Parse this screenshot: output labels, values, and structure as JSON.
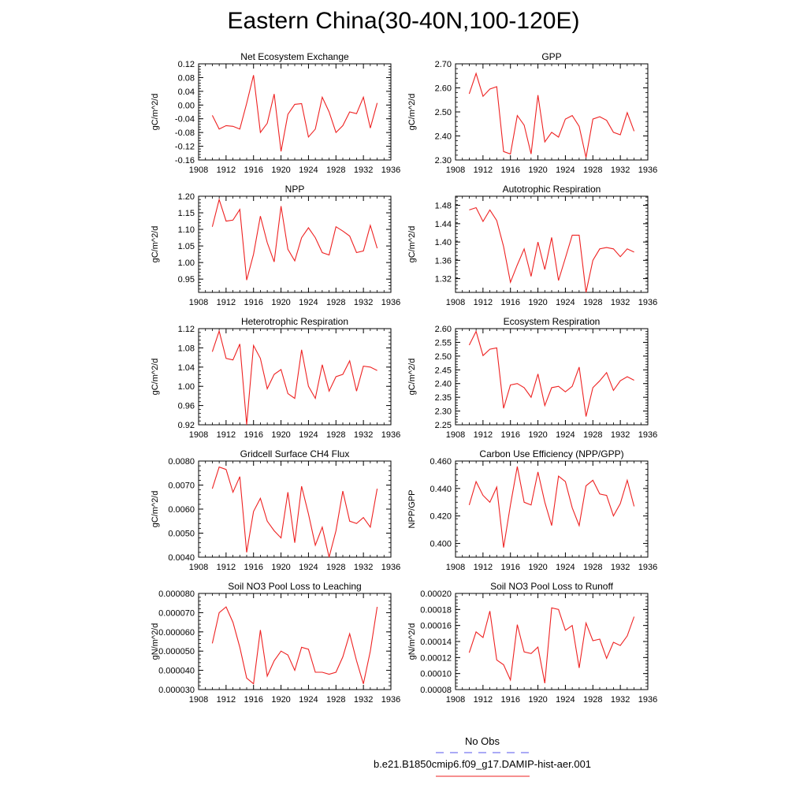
{
  "page_title": "Eastern China(30-40N,100-120E)",
  "legend": {
    "items": [
      {
        "label": "No Obs",
        "color": "#5555ee",
        "dash": "dashed"
      },
      {
        "label": "b.e21.B1850cmip6.f09_g17.DAMIP-hist-aer.001",
        "color": "#ee2222",
        "dash": "solid"
      }
    ]
  },
  "chart_data": [
    {
      "type": "line",
      "title": "Net Ecosystem Exchange",
      "ylabel": "gC/m^2/d",
      "xlim": [
        1908,
        1936
      ],
      "xticks": [
        "1908",
        "1912",
        "1916",
        "1920",
        "1924",
        "1928",
        "1932",
        "1936"
      ],
      "ylim": [
        -0.16,
        0.12
      ],
      "yticks": [
        "-0.16",
        "-0.12",
        "-0.08",
        "-0.04",
        "0.00",
        "0.04",
        "0.08",
        "0.12"
      ],
      "color": "#ee2222",
      "x": [
        1910,
        1911,
        1912,
        1913,
        1914,
        1915,
        1916,
        1917,
        1918,
        1919,
        1920,
        1921,
        1922,
        1923,
        1924,
        1925,
        1926,
        1927,
        1928,
        1929,
        1930,
        1931,
        1932,
        1933,
        1934
      ],
      "values": [
        -0.03,
        -0.07,
        -0.06,
        -0.062,
        -0.07,
        0.005,
        0.087,
        -0.08,
        -0.053,
        0.032,
        -0.135,
        -0.027,
        0.002,
        0.004,
        -0.093,
        -0.07,
        0.023,
        -0.02,
        -0.08,
        -0.06,
        -0.02,
        -0.025,
        0.023,
        -0.067,
        0.006
      ]
    },
    {
      "type": "line",
      "title": "GPP",
      "ylabel": "gC/m^2/d",
      "xlim": [
        1908,
        1936
      ],
      "xticks": [
        "1908",
        "1912",
        "1916",
        "1920",
        "1924",
        "1928",
        "1932",
        "1936"
      ],
      "ylim": [
        2.3,
        2.7
      ],
      "yticks": [
        "2.30",
        "2.40",
        "2.50",
        "2.60",
        "2.70"
      ],
      "color": "#ee2222",
      "x": [
        1910,
        1911,
        1912,
        1913,
        1914,
        1915,
        1916,
        1917,
        1918,
        1919,
        1920,
        1921,
        1922,
        1923,
        1924,
        1925,
        1926,
        1927,
        1928,
        1929,
        1930,
        1931,
        1932,
        1933,
        1934
      ],
      "values": [
        2.575,
        2.66,
        2.565,
        2.595,
        2.605,
        2.335,
        2.325,
        2.485,
        2.445,
        2.325,
        2.57,
        2.375,
        2.415,
        2.395,
        2.47,
        2.485,
        2.44,
        2.31,
        2.47,
        2.48,
        2.465,
        2.415,
        2.405,
        2.497,
        2.42
      ]
    },
    {
      "type": "line",
      "title": "NPP",
      "ylabel": "gC/m^2/d",
      "xlim": [
        1908,
        1936
      ],
      "xticks": [
        "1908",
        "1912",
        "1916",
        "1920",
        "1924",
        "1928",
        "1932",
        "1936"
      ],
      "ylim": [
        0.91,
        1.2
      ],
      "yticks": [
        "0.95",
        "1.00",
        "1.05",
        "1.10",
        "1.15",
        "1.20"
      ],
      "color": "#ee2222",
      "x": [
        1910,
        1911,
        1912,
        1913,
        1914,
        1915,
        1916,
        1917,
        1918,
        1919,
        1920,
        1921,
        1922,
        1923,
        1924,
        1925,
        1926,
        1927,
        1928,
        1929,
        1930,
        1931,
        1932,
        1933,
        1934
      ],
      "values": [
        1.108,
        1.19,
        1.125,
        1.128,
        1.16,
        0.947,
        1.025,
        1.14,
        1.06,
        1.002,
        1.17,
        1.04,
        1.005,
        1.075,
        1.105,
        1.075,
        1.03,
        1.023,
        1.108,
        1.095,
        1.08,
        1.03,
        1.035,
        1.112,
        1.043
      ]
    },
    {
      "type": "line",
      "title": "Autotrophic Respiration",
      "ylabel": "gC/m^2/d",
      "xlim": [
        1908,
        1936
      ],
      "xticks": [
        "1908",
        "1912",
        "1916",
        "1920",
        "1924",
        "1928",
        "1932",
        "1936"
      ],
      "ylim": [
        1.29,
        1.5
      ],
      "yticks": [
        "1.32",
        "1.36",
        "1.40",
        "1.44",
        "1.48"
      ],
      "color": "#ee2222",
      "x": [
        1910,
        1911,
        1912,
        1913,
        1914,
        1915,
        1916,
        1917,
        1918,
        1919,
        1920,
        1921,
        1922,
        1923,
        1924,
        1925,
        1926,
        1927,
        1928,
        1929,
        1930,
        1931,
        1932,
        1933,
        1934
      ],
      "values": [
        1.47,
        1.475,
        1.445,
        1.47,
        1.447,
        1.39,
        1.312,
        1.35,
        1.385,
        1.325,
        1.4,
        1.34,
        1.41,
        1.316,
        1.365,
        1.415,
        1.415,
        1.29,
        1.36,
        1.385,
        1.388,
        1.385,
        1.368,
        1.385,
        1.378
      ]
    },
    {
      "type": "line",
      "title": "Heterotrophic Respiration",
      "ylabel": "gC/m^2/d",
      "xlim": [
        1908,
        1936
      ],
      "xticks": [
        "1908",
        "1912",
        "1916",
        "1920",
        "1924",
        "1928",
        "1932",
        "1936"
      ],
      "ylim": [
        0.92,
        1.12
      ],
      "yticks": [
        "0.92",
        "0.96",
        "1.00",
        "1.04",
        "1.08",
        "1.12"
      ],
      "color": "#ee2222",
      "x": [
        1910,
        1911,
        1912,
        1913,
        1914,
        1915,
        1916,
        1917,
        1918,
        1919,
        1920,
        1921,
        1922,
        1923,
        1924,
        1925,
        1926,
        1927,
        1928,
        1929,
        1930,
        1931,
        1932,
        1933,
        1934
      ],
      "values": [
        1.072,
        1.115,
        1.058,
        1.055,
        1.088,
        0.92,
        1.085,
        1.058,
        0.995,
        1.025,
        1.035,
        0.985,
        0.975,
        1.076,
        1.0,
        0.975,
        1.045,
        0.99,
        1.02,
        1.025,
        1.053,
        0.99,
        1.042,
        1.04,
        1.033
      ]
    },
    {
      "type": "line",
      "title": "Ecosystem Respiration",
      "ylabel": "gC/m^2/d",
      "xlim": [
        1908,
        1936
      ],
      "xticks": [
        "1908",
        "1912",
        "1916",
        "1920",
        "1924",
        "1928",
        "1932",
        "1936"
      ],
      "ylim": [
        2.25,
        2.6
      ],
      "yticks": [
        "2.25",
        "2.30",
        "2.35",
        "2.40",
        "2.45",
        "2.50",
        "2.55",
        "2.60"
      ],
      "color": "#ee2222",
      "x": [
        1910,
        1911,
        1912,
        1913,
        1914,
        1915,
        1916,
        1917,
        1918,
        1919,
        1920,
        1921,
        1922,
        1923,
        1924,
        1925,
        1926,
        1927,
        1928,
        1929,
        1930,
        1931,
        1932,
        1933,
        1934
      ],
      "values": [
        2.54,
        2.59,
        2.502,
        2.525,
        2.53,
        2.31,
        2.395,
        2.4,
        2.385,
        2.35,
        2.435,
        2.32,
        2.385,
        2.39,
        2.37,
        2.39,
        2.46,
        2.28,
        2.385,
        2.41,
        2.44,
        2.375,
        2.41,
        2.425,
        2.412
      ]
    },
    {
      "type": "line",
      "title": "Gridcell Surface CH4 Flux",
      "ylabel": "gC/m^2/d",
      "xlim": [
        1908,
        1936
      ],
      "xticks": [
        "1908",
        "1912",
        "1916",
        "1920",
        "1924",
        "1928",
        "1932",
        "1936"
      ],
      "ylim": [
        0.004,
        0.008
      ],
      "yticks": [
        "0.0040",
        "0.0050",
        "0.0060",
        "0.0070",
        "0.0080"
      ],
      "color": "#ee2222",
      "x": [
        1910,
        1911,
        1912,
        1913,
        1914,
        1915,
        1916,
        1917,
        1918,
        1919,
        1920,
        1921,
        1922,
        1923,
        1924,
        1925,
        1926,
        1927,
        1928,
        1929,
        1930,
        1931,
        1932,
        1933,
        1934
      ],
      "values": [
        0.00685,
        0.00775,
        0.00765,
        0.0067,
        0.00735,
        0.0042,
        0.0059,
        0.00645,
        0.0055,
        0.0051,
        0.0048,
        0.0067,
        0.0046,
        0.00695,
        0.0058,
        0.0045,
        0.00525,
        0.004,
        0.0051,
        0.00675,
        0.0055,
        0.0054,
        0.00565,
        0.00525,
        0.00685
      ]
    },
    {
      "type": "line",
      "title": "Carbon Use Efficiency (NPP/GPP)",
      "ylabel": "NPP/GPP",
      "xlim": [
        1908,
        1936
      ],
      "xticks": [
        "1908",
        "1912",
        "1916",
        "1920",
        "1924",
        "1928",
        "1932",
        "1936"
      ],
      "ylim": [
        0.39,
        0.46
      ],
      "yticks": [
        "0.400",
        "0.420",
        "0.440",
        "0.460"
      ],
      "color": "#ee2222",
      "x": [
        1910,
        1911,
        1912,
        1913,
        1914,
        1915,
        1916,
        1917,
        1918,
        1919,
        1920,
        1921,
        1922,
        1923,
        1924,
        1925,
        1926,
        1927,
        1928,
        1929,
        1930,
        1931,
        1932,
        1933,
        1934
      ],
      "values": [
        0.428,
        0.445,
        0.435,
        0.43,
        0.441,
        0.397,
        0.428,
        0.456,
        0.43,
        0.428,
        0.452,
        0.43,
        0.413,
        0.449,
        0.445,
        0.426,
        0.413,
        0.442,
        0.446,
        0.436,
        0.435,
        0.42,
        0.429,
        0.446,
        0.427
      ]
    },
    {
      "type": "line",
      "title": "Soil NO3 Pool Loss to Leaching",
      "ylabel": "gN/m^2/d",
      "xlim": [
        1908,
        1936
      ],
      "xticks": [
        "1908",
        "1912",
        "1916",
        "1920",
        "1924",
        "1928",
        "1932",
        "1936"
      ],
      "ylim": [
        3e-05,
        8e-05
      ],
      "yticks": [
        "0.000030",
        "0.000040",
        "0.000050",
        "0.000060",
        "0.000070",
        "0.000080"
      ],
      "color": "#ee2222",
      "x": [
        1910,
        1911,
        1912,
        1913,
        1914,
        1915,
        1916,
        1917,
        1918,
        1919,
        1920,
        1921,
        1922,
        1923,
        1924,
        1925,
        1926,
        1927,
        1928,
        1929,
        1930,
        1931,
        1932,
        1933,
        1934
      ],
      "values": [
        5.4e-05,
        7e-05,
        7.3e-05,
        6.5e-05,
        5.2e-05,
        3.6e-05,
        3.3e-05,
        6.1e-05,
        3.7e-05,
        4.5e-05,
        5e-05,
        4.8e-05,
        4e-05,
        5.2e-05,
        5.1e-05,
        3.9e-05,
        3.9e-05,
        3.8e-05,
        3.9e-05,
        4.7e-05,
        5.9e-05,
        4.5e-05,
        3.3e-05,
        5e-05,
        7.3e-05
      ]
    },
    {
      "type": "line",
      "title": "Soil NO3 Pool Loss to Runoff",
      "ylabel": "gN/m^2/d",
      "xlim": [
        1908,
        1936
      ],
      "xticks": [
        "1908",
        "1912",
        "1916",
        "1920",
        "1924",
        "1928",
        "1932",
        "1936"
      ],
      "ylim": [
        8e-05,
        0.0002
      ],
      "yticks": [
        "0.00008",
        "0.00010",
        "0.00012",
        "0.00014",
        "0.00016",
        "0.00018",
        "0.00020"
      ],
      "color": "#ee2222",
      "x": [
        1910,
        1911,
        1912,
        1913,
        1914,
        1915,
        1916,
        1917,
        1918,
        1919,
        1920,
        1921,
        1922,
        1923,
        1924,
        1925,
        1926,
        1927,
        1928,
        1929,
        1930,
        1931,
        1932,
        1933,
        1934
      ],
      "values": [
        0.000126,
        0.000152,
        0.000145,
        0.000178,
        0.000117,
        0.000111,
        9.2e-05,
        0.000161,
        0.000127,
        0.000125,
        0.000133,
        8.8e-05,
        0.000182,
        0.00018,
        0.000154,
        0.00016,
        0.000107,
        0.000163,
        0.000141,
        0.000143,
        0.000119,
        0.000139,
        0.000135,
        0.000147,
        0.000171
      ]
    }
  ]
}
